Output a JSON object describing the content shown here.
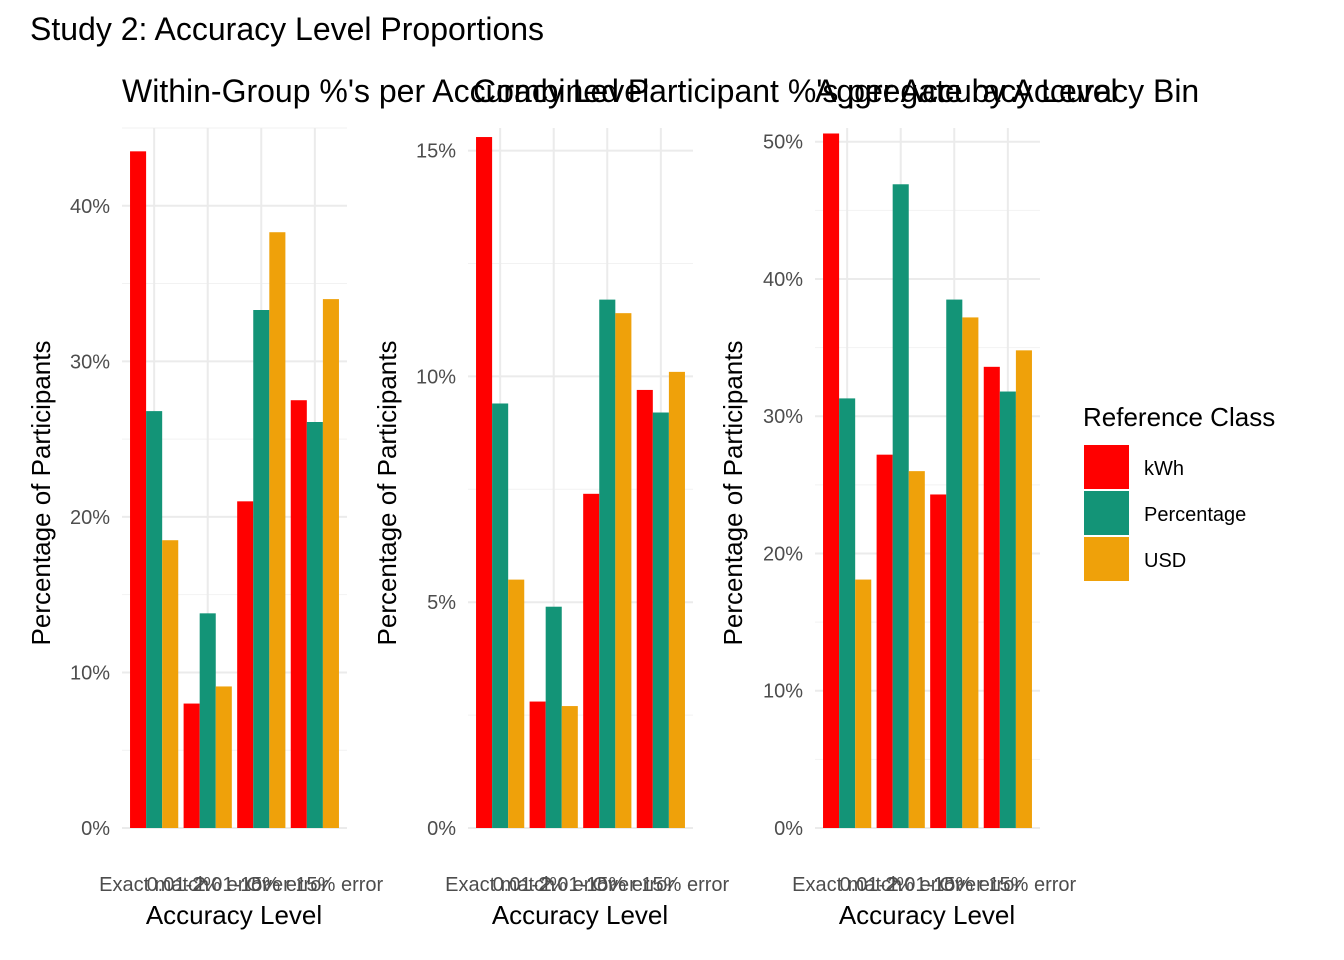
{
  "figure_title": "Study 2: Accuracy Level Proportions",
  "legend": {
    "title": "Reference Class",
    "entries": [
      {
        "name": "kWh",
        "color": "#FF0000"
      },
      {
        "name": "Percentage",
        "color": "#139477"
      },
      {
        "name": "USD",
        "color": "#EFA10A"
      }
    ]
  },
  "chart_data": [
    {
      "type": "bar",
      "title": "Within-Group %'s per Accuracy Level",
      "xlabel": "Accuracy Level",
      "ylabel": "Percentage of Participants",
      "categories": [
        "Exact match",
        "0.01-2% error",
        "2.01-15% error",
        "Over 15% error"
      ],
      "ylim": [
        0,
        0.45
      ],
      "yticks": [
        0,
        0.1,
        0.2,
        0.3,
        0.4
      ],
      "ytick_labels": [
        "0%",
        "10%",
        "20%",
        "30%",
        "40%"
      ],
      "series": [
        {
          "name": "kWh",
          "values": [
            0.435,
            0.08,
            0.21,
            0.275
          ]
        },
        {
          "name": "Percentage",
          "values": [
            0.268,
            0.138,
            0.333,
            0.261
          ]
        },
        {
          "name": "USD",
          "values": [
            0.185,
            0.091,
            0.383,
            0.34
          ]
        }
      ]
    },
    {
      "type": "bar",
      "title": "Combined Participant %'s per Accuracy Level",
      "xlabel": "Accuracy Level",
      "ylabel": "Percentage of Participants",
      "categories": [
        "Exact match",
        "0.01-2% error",
        "2.01-15% error",
        "Over 15% error"
      ],
      "ylim": [
        0,
        0.155
      ],
      "yticks": [
        0,
        0.05,
        0.1,
        0.15
      ],
      "ytick_labels": [
        "0%",
        "5%",
        "10%",
        "15%"
      ],
      "series": [
        {
          "name": "kWh",
          "values": [
            0.153,
            0.028,
            0.074,
            0.097
          ]
        },
        {
          "name": "Percentage",
          "values": [
            0.094,
            0.049,
            0.117,
            0.092
          ]
        },
        {
          "name": "USD",
          "values": [
            0.055,
            0.027,
            0.114,
            0.101
          ]
        }
      ]
    },
    {
      "type": "bar",
      "title": "Aggregate by Accuracy Bin",
      "xlabel": "Accuracy Level",
      "ylabel": "Percentage of Participants",
      "categories": [
        "Exact match",
        "0.01-2% error",
        "2.01-15% error",
        "Over 15% error"
      ],
      "ylim": [
        0,
        0.51
      ],
      "yticks": [
        0,
        0.1,
        0.2,
        0.3,
        0.4,
        0.5
      ],
      "ytick_labels": [
        "0%",
        "10%",
        "20%",
        "30%",
        "40%",
        "50%"
      ],
      "series": [
        {
          "name": "kWh",
          "values": [
            0.506,
            0.272,
            0.243,
            0.336
          ]
        },
        {
          "name": "Percentage",
          "values": [
            0.313,
            0.469,
            0.385,
            0.318
          ]
        },
        {
          "name": "USD",
          "values": [
            0.181,
            0.26,
            0.372,
            0.348
          ]
        }
      ]
    }
  ]
}
